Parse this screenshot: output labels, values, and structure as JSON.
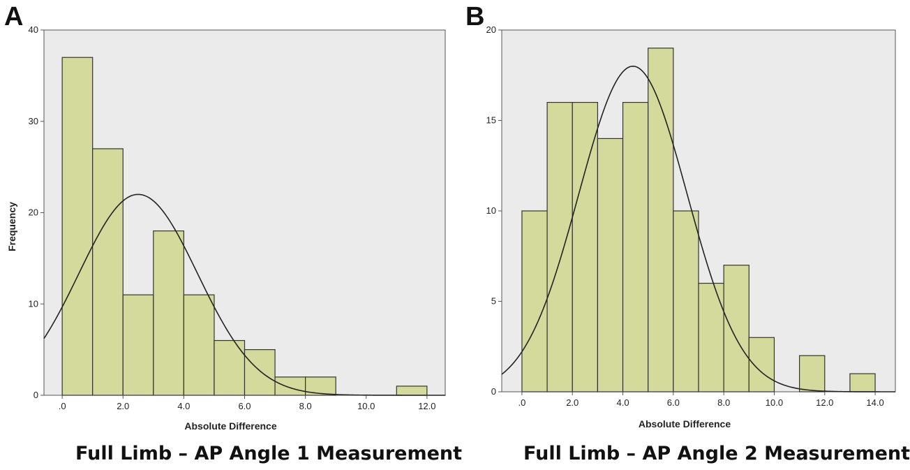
{
  "panels": [
    {
      "letter": "A",
      "caption": "Full Limb – AP Angle 1 Measurement"
    },
    {
      "letter": "B",
      "caption": "Full Limb – AP Angle 2 Measurement"
    }
  ],
  "colors": {
    "plot_background": "#ebebeb",
    "bar_fill": "#d4da9c",
    "bar_stroke": "#333333",
    "curve": "#222222"
  },
  "chart_data": [
    {
      "type": "bar",
      "subtype": "histogram with normal curve",
      "xlabel": "Absolute Difference",
      "ylabel": "Frequency",
      "xlim": [
        -0.6,
        12.6
      ],
      "ylim": [
        0,
        40
      ],
      "x_ticks": [
        0,
        2,
        4,
        6,
        8,
        10,
        12
      ],
      "x_tick_labels": [
        ".0",
        "2.0",
        "4.0",
        "6.0",
        "8.0",
        "10.0",
        "12.0"
      ],
      "y_ticks": [
        0,
        10,
        20,
        30,
        40
      ],
      "y_tick_labels": [
        "0",
        "10",
        "20",
        "30",
        "40"
      ],
      "bins": [
        {
          "start": 0,
          "end": 1,
          "count": 37
        },
        {
          "start": 1,
          "end": 2,
          "count": 27
        },
        {
          "start": 2,
          "end": 3,
          "count": 11
        },
        {
          "start": 3,
          "end": 4,
          "count": 18
        },
        {
          "start": 4,
          "end": 5,
          "count": 11
        },
        {
          "start": 5,
          "end": 6,
          "count": 6
        },
        {
          "start": 6,
          "end": 7,
          "count": 5
        },
        {
          "start": 7,
          "end": 8,
          "count": 2
        },
        {
          "start": 8,
          "end": 9,
          "count": 2
        },
        {
          "start": 11,
          "end": 12,
          "count": 1
        }
      ],
      "normal_curve": {
        "mean": 2.5,
        "peak": 22,
        "sd": 1.95
      },
      "grid": false
    },
    {
      "type": "bar",
      "subtype": "histogram with normal curve",
      "xlabel": "Absolute Difference",
      "ylabel": "",
      "xlim": [
        -0.8,
        14.8
      ],
      "ylim": [
        0,
        20
      ],
      "x_ticks": [
        0,
        2,
        4,
        6,
        8,
        10,
        12,
        14
      ],
      "x_tick_labels": [
        ".0",
        "2.0",
        "4.0",
        "6.0",
        "8.0",
        "10.0",
        "12.0",
        "14.0"
      ],
      "y_ticks": [
        0,
        5,
        10,
        15,
        20
      ],
      "y_tick_labels": [
        "0",
        "5",
        "10",
        "15",
        "20"
      ],
      "bins": [
        {
          "start": 0,
          "end": 1,
          "count": 10
        },
        {
          "start": 1,
          "end": 2,
          "count": 16
        },
        {
          "start": 2,
          "end": 3,
          "count": 16
        },
        {
          "start": 3,
          "end": 4,
          "count": 14
        },
        {
          "start": 4,
          "end": 5,
          "count": 16
        },
        {
          "start": 5,
          "end": 6,
          "count": 19
        },
        {
          "start": 6,
          "end": 7,
          "count": 10
        },
        {
          "start": 7,
          "end": 8,
          "count": 6
        },
        {
          "start": 8,
          "end": 9,
          "count": 7
        },
        {
          "start": 9,
          "end": 10,
          "count": 3
        },
        {
          "start": 11,
          "end": 12,
          "count": 2
        },
        {
          "start": 13,
          "end": 14,
          "count": 1
        }
      ],
      "normal_curve": {
        "mean": 4.4,
        "peak": 18,
        "sd": 2.15
      },
      "grid": false
    }
  ]
}
